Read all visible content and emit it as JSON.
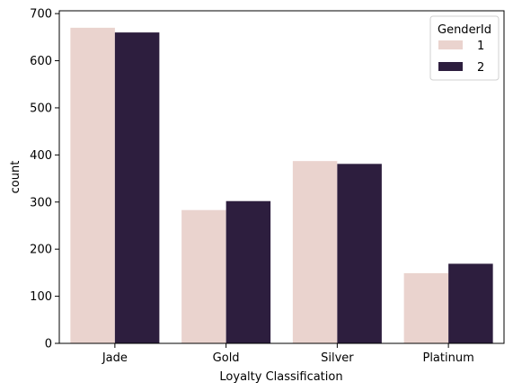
{
  "chart_data": {
    "type": "bar",
    "categories": [
      "Jade",
      "Gold",
      "Silver",
      "Platinum"
    ],
    "series": [
      {
        "name": "1",
        "values": [
          670,
          283,
          387,
          149
        ]
      },
      {
        "name": "2",
        "values": [
          660,
          302,
          381,
          169
        ]
      }
    ],
    "xlabel": "Loyalty Classification",
    "ylabel": "count",
    "ylim": [
      0,
      706
    ],
    "yticks": [
      0,
      100,
      200,
      300,
      400,
      500,
      600,
      700
    ],
    "legend": {
      "title": "GenderId",
      "placement": "top-right"
    },
    "colors": [
      "#ead3ce",
      "#2d1e3e"
    ],
    "grid": false
  }
}
